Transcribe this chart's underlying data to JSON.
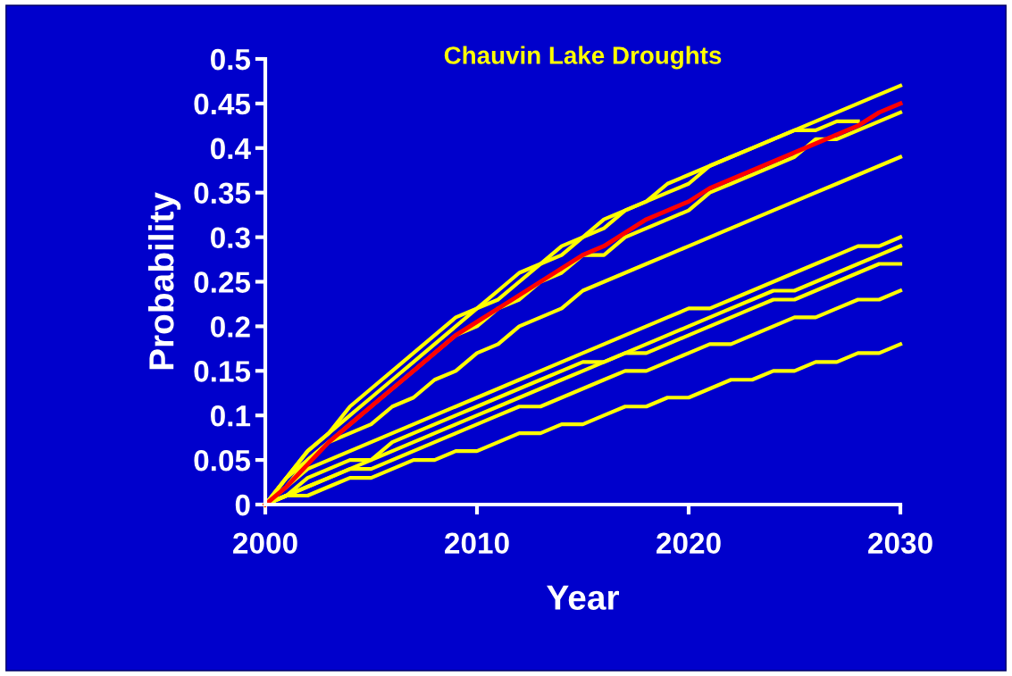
{
  "chart_data": {
    "type": "line",
    "title": "Chauvin Lake Droughts",
    "xlabel": "Year",
    "ylabel": "Probability",
    "x": [
      2000,
      2001,
      2002,
      2003,
      2004,
      2005,
      2006,
      2007,
      2008,
      2009,
      2010,
      2011,
      2012,
      2013,
      2014,
      2015,
      2016,
      2017,
      2018,
      2019,
      2020,
      2021,
      2022,
      2023,
      2024,
      2025,
      2026,
      2027,
      2028,
      2029,
      2030
    ],
    "xlim": [
      2000,
      2030
    ],
    "xticks": [
      2000,
      2010,
      2020,
      2030
    ],
    "ylim": [
      0,
      0.5
    ],
    "yticks": [
      0,
      0.05,
      0.1,
      0.15,
      0.2,
      0.25,
      0.3,
      0.35,
      0.4,
      0.45,
      0.5
    ],
    "grid": false,
    "marker": "none",
    "line_style": "solid",
    "series": [
      {
        "color": "#ffff00",
        "values": [
          0,
          0.03,
          0.06,
          0.08,
          0.11,
          0.13,
          0.15,
          0.17,
          0.19,
          0.21,
          0.22,
          0.24,
          0.26,
          0.27,
          0.29,
          0.3,
          0.32,
          0.33,
          0.34,
          0.36,
          0.37,
          0.38,
          0.39,
          0.4,
          0.41,
          0.42,
          0.43,
          0.44,
          0.45,
          0.46,
          0.47
        ]
      },
      {
        "color": "#ffff00",
        "values": [
          0,
          0.03,
          0.06,
          0.08,
          0.1,
          0.12,
          0.14,
          0.16,
          0.18,
          0.2,
          0.22,
          0.23,
          0.25,
          0.27,
          0.28,
          0.3,
          0.31,
          0.33,
          0.34,
          0.35,
          0.36,
          0.38,
          0.39,
          0.4,
          0.41,
          0.42,
          0.42,
          0.43,
          0.43,
          null,
          null
        ]
      },
      {
        "color": "#ffff00",
        "values": [
          0,
          0.03,
          0.05,
          0.07,
          0.09,
          0.11,
          0.13,
          0.15,
          0.17,
          0.19,
          0.2,
          0.22,
          0.23,
          0.25,
          0.26,
          0.28,
          0.28,
          0.3,
          0.31,
          0.32,
          0.33,
          0.35,
          0.36,
          0.37,
          0.38,
          0.39,
          0.41,
          0.41,
          0.42,
          0.43,
          0.44
        ]
      },
      {
        "color": "#ffff00",
        "values": [
          0,
          0.02,
          0.05,
          0.07,
          0.08,
          0.09,
          0.11,
          0.12,
          0.14,
          0.15,
          0.17,
          0.18,
          0.2,
          0.21,
          0.22,
          0.24,
          0.25,
          0.26,
          0.27,
          0.28,
          0.29,
          0.3,
          0.31,
          0.32,
          0.33,
          0.34,
          0.35,
          0.36,
          0.37,
          0.38,
          0.39
        ]
      },
      {
        "color": "#ffff00",
        "values": [
          0,
          0.02,
          0.04,
          0.05,
          0.06,
          0.07,
          0.08,
          0.09,
          0.1,
          0.11,
          0.12,
          0.13,
          0.14,
          0.15,
          0.16,
          0.17,
          0.18,
          0.19,
          0.2,
          0.21,
          0.22,
          0.22,
          0.23,
          0.24,
          0.25,
          0.26,
          0.27,
          0.28,
          0.29,
          0.29,
          0.3
        ]
      },
      {
        "color": "#ffff00",
        "values": [
          0,
          0.01,
          0.03,
          0.04,
          0.05,
          0.05,
          0.07,
          0.08,
          0.09,
          0.1,
          0.11,
          0.12,
          0.13,
          0.14,
          0.15,
          0.16,
          0.16,
          0.17,
          0.18,
          0.19,
          0.2,
          0.21,
          0.22,
          0.23,
          0.24,
          0.24,
          0.25,
          0.26,
          0.27,
          0.28,
          0.29
        ]
      },
      {
        "color": "#ffff00",
        "values": [
          0,
          0.01,
          0.02,
          0.03,
          0.04,
          0.05,
          0.06,
          0.07,
          0.08,
          0.09,
          0.1,
          0.11,
          0.12,
          0.13,
          0.14,
          0.15,
          0.16,
          0.17,
          0.17,
          0.18,
          0.19,
          0.2,
          0.21,
          0.22,
          0.23,
          0.23,
          0.24,
          0.25,
          0.26,
          0.27,
          0.27
        ]
      },
      {
        "color": "#ffff00",
        "values": [
          0,
          0.01,
          0.02,
          0.03,
          0.04,
          0.04,
          0.05,
          0.06,
          0.07,
          0.08,
          0.09,
          0.1,
          0.11,
          0.11,
          0.12,
          0.13,
          0.14,
          0.15,
          0.15,
          0.16,
          0.17,
          0.18,
          0.18,
          0.19,
          0.2,
          0.21,
          0.21,
          0.22,
          0.23,
          0.23,
          0.24
        ]
      },
      {
        "color": "#ffff00",
        "values": [
          0,
          0.01,
          0.01,
          0.02,
          0.03,
          0.03,
          0.04,
          0.05,
          0.05,
          0.06,
          0.06,
          0.07,
          0.08,
          0.08,
          0.09,
          0.09,
          0.1,
          0.11,
          0.11,
          0.12,
          0.12,
          0.13,
          0.14,
          0.14,
          0.15,
          0.15,
          0.16,
          0.16,
          0.17,
          0.17,
          0.18
        ]
      },
      {
        "color": "#ff0000",
        "values": [
          0,
          0.02,
          0.045,
          0.07,
          0.09,
          0.11,
          0.13,
          0.15,
          0.17,
          0.19,
          0.205,
          0.22,
          0.235,
          0.25,
          0.265,
          0.28,
          0.29,
          0.305,
          0.32,
          0.33,
          0.34,
          0.355,
          0.365,
          0.375,
          0.385,
          0.395,
          0.405,
          0.415,
          0.425,
          0.44,
          0.45
        ]
      }
    ]
  }
}
